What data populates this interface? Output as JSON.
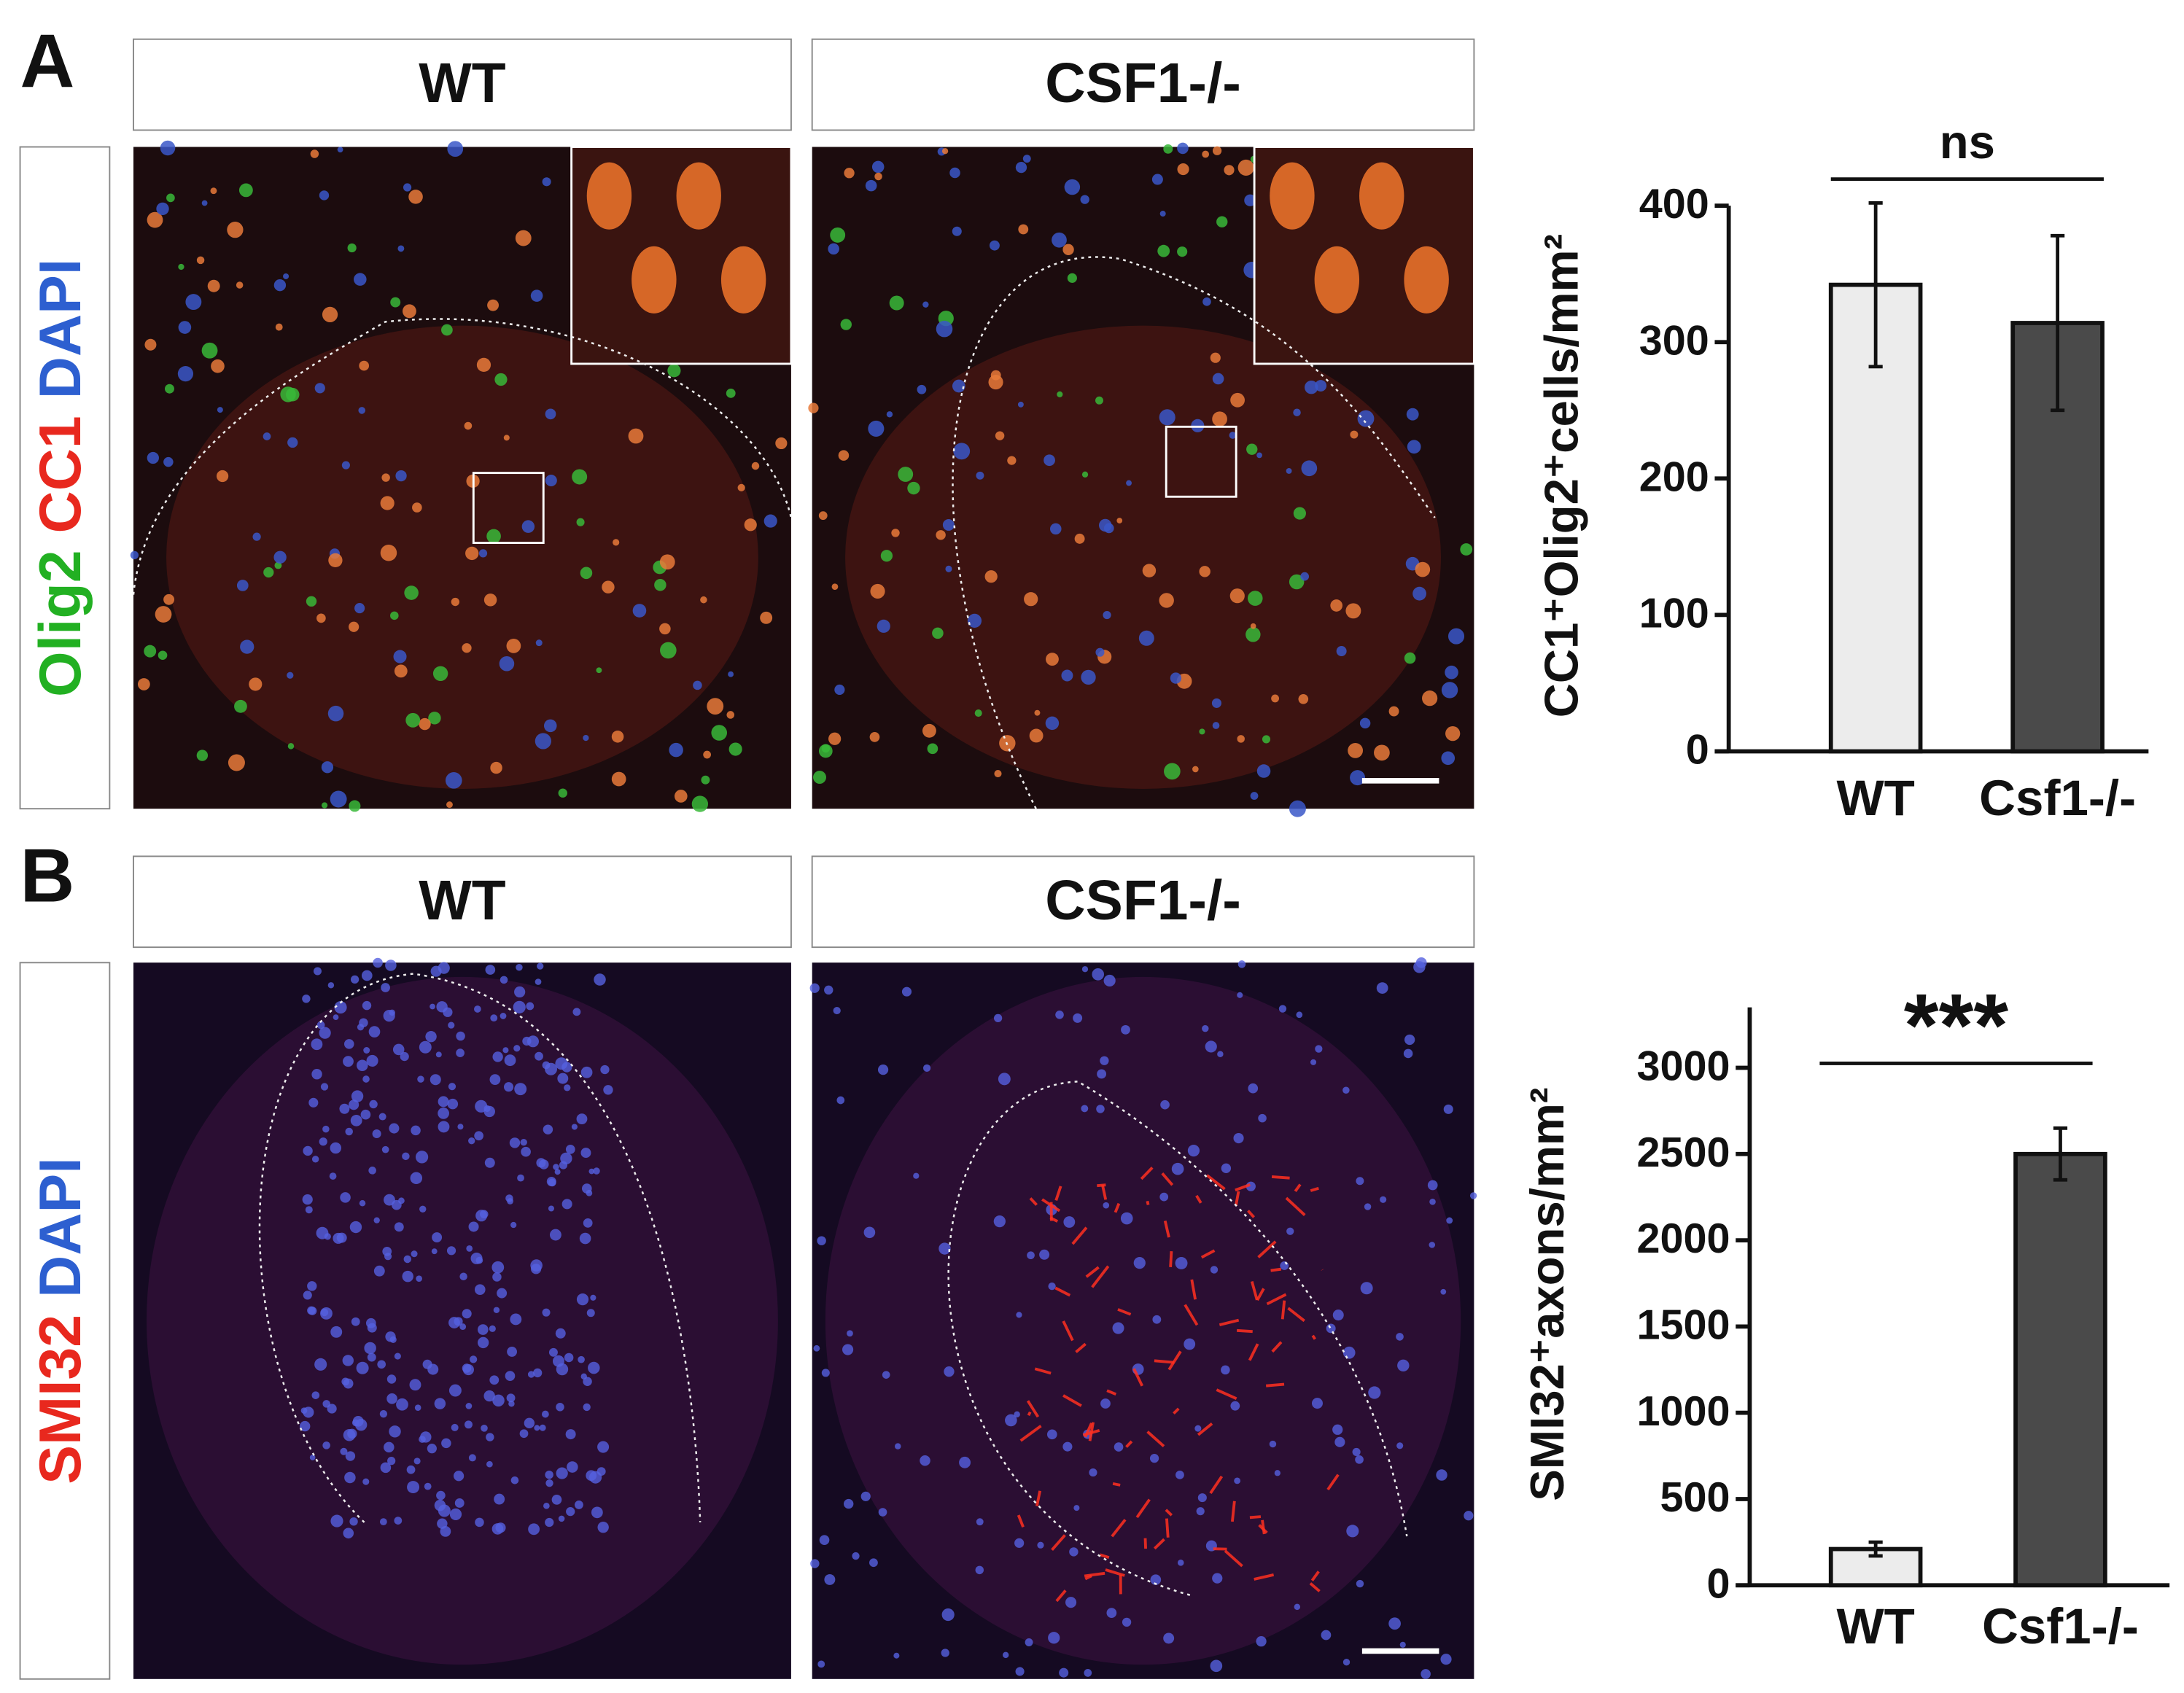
{
  "panels": [
    {
      "label": "A",
      "columns": [
        "WT",
        "CSF1-/-"
      ],
      "stains": [
        {
          "text": "Olig2",
          "color": "#22b022"
        },
        {
          "text": "CC1",
          "color": "#e8281e"
        },
        {
          "text": "DAPI",
          "color": "#2d5fd0"
        }
      ]
    },
    {
      "label": "B",
      "columns": [
        "WT",
        "CSF1-/-"
      ],
      "stains": [
        {
          "text": "SMI32",
          "color": "#e8281e"
        },
        {
          "text": "DAPI",
          "color": "#2d5fd0"
        }
      ]
    }
  ],
  "chart_data": [
    {
      "type": "bar",
      "ylabel": "CC1⁺Olig2⁺cells/mm²",
      "categories": [
        "WT",
        "Csf1-/-"
      ],
      "values": [
        342,
        314
      ],
      "errors": [
        60,
        64
      ],
      "colors": [
        "#ececec",
        "#4a4a4a"
      ],
      "ylim": [
        0,
        400
      ],
      "yticks": [
        0,
        100,
        200,
        300,
        400
      ],
      "annotation": "ns"
    },
    {
      "type": "bar",
      "ylabel": "SMI32⁺axons/mm²",
      "categories": [
        "WT",
        "Csf1-/-"
      ],
      "values": [
        210,
        2500
      ],
      "errors": [
        40,
        150
      ],
      "colors": [
        "#ececec",
        "#4a4a4a"
      ],
      "ylim": [
        0,
        3350
      ],
      "yticks": [
        0,
        500,
        1000,
        1500,
        2000,
        2500,
        3000
      ],
      "annotation": "***"
    }
  ]
}
